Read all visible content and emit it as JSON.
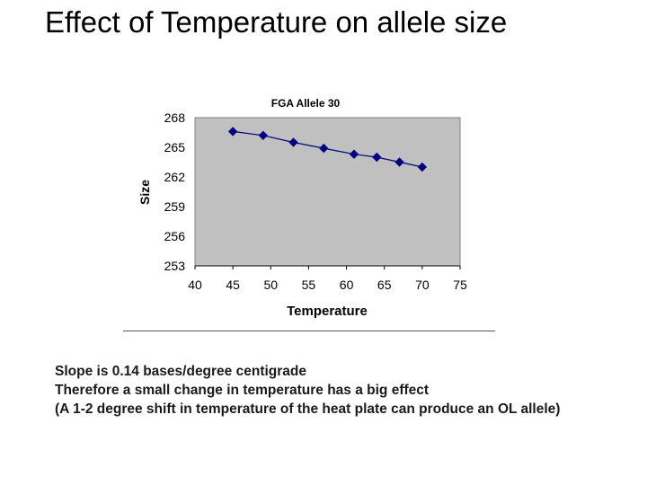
{
  "slide": {
    "title": "Effect of Temperature on allele size",
    "notes": [
      "Slope is 0.14 bases/degree centigrade",
      "Therefore a small change in temperature has a big effect",
      "(A 1-2 degree shift in temperature of the heat plate can produce an OL allele)"
    ]
  },
  "chart_data": {
    "type": "line",
    "title": "FGA Allele 30",
    "xlabel": "Temperature",
    "ylabel": "Size",
    "xlim": [
      40,
      75
    ],
    "ylim": [
      253,
      268
    ],
    "xticks": [
      40,
      45,
      50,
      55,
      60,
      65,
      70,
      75
    ],
    "yticks": [
      253,
      256,
      259,
      262,
      265,
      268
    ],
    "grid": false,
    "legend": "none",
    "plot_background": "#c0c0c0",
    "series": [
      {
        "color": "#000080",
        "marker": "diamond",
        "x": [
          45,
          49,
          53,
          57,
          61,
          64,
          67,
          70
        ],
        "y": [
          266.6,
          266.2,
          265.5,
          264.9,
          264.3,
          264.0,
          263.5,
          263.0
        ]
      }
    ]
  }
}
